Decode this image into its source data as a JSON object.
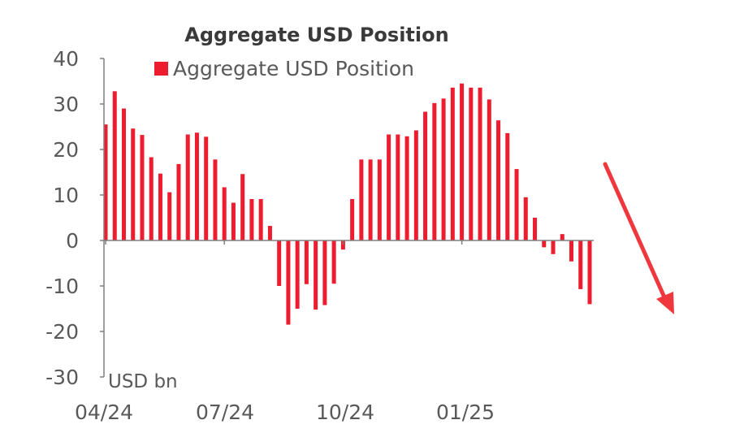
{
  "chart_data": {
    "type": "bar",
    "title": "Aggregate USD Position",
    "unit_label": "USD bn",
    "legend": {
      "entries": [
        "Aggregate USD Position"
      ],
      "placement": "top-center"
    },
    "x_tick_labels": [
      "04/24",
      "07/24",
      "10/24",
      "01/25"
    ],
    "ylim": [
      -30,
      40
    ],
    "y_ticks": [
      40,
      30,
      20,
      10,
      0,
      -10,
      -20,
      -30
    ],
    "grid": false,
    "series": [
      {
        "color": "#ed1c2e",
        "values": [
          25.5,
          32.8,
          29.0,
          24.6,
          23.2,
          18.3,
          14.7,
          10.6,
          16.8,
          23.3,
          23.7,
          22.8,
          17.8,
          11.7,
          8.3,
          14.6,
          9.1,
          9.1,
          3.2,
          -10.0,
          -18.5,
          -15.0,
          -9.6,
          -15.2,
          -14.2,
          -9.5,
          -2.0,
          9.1,
          17.8,
          17.8,
          17.8,
          23.3,
          23.3,
          22.9,
          24.2,
          28.3,
          30.2,
          31.2,
          33.6,
          34.5,
          33.6,
          33.6,
          31.0,
          26.4,
          23.6,
          15.7,
          9.5,
          5.0,
          -1.5,
          -3.0,
          1.4,
          -4.6,
          -10.7,
          -14.0
        ]
      }
    ]
  },
  "annotation": {
    "type": "arrow",
    "color": "#f0373d",
    "direction": "down"
  }
}
